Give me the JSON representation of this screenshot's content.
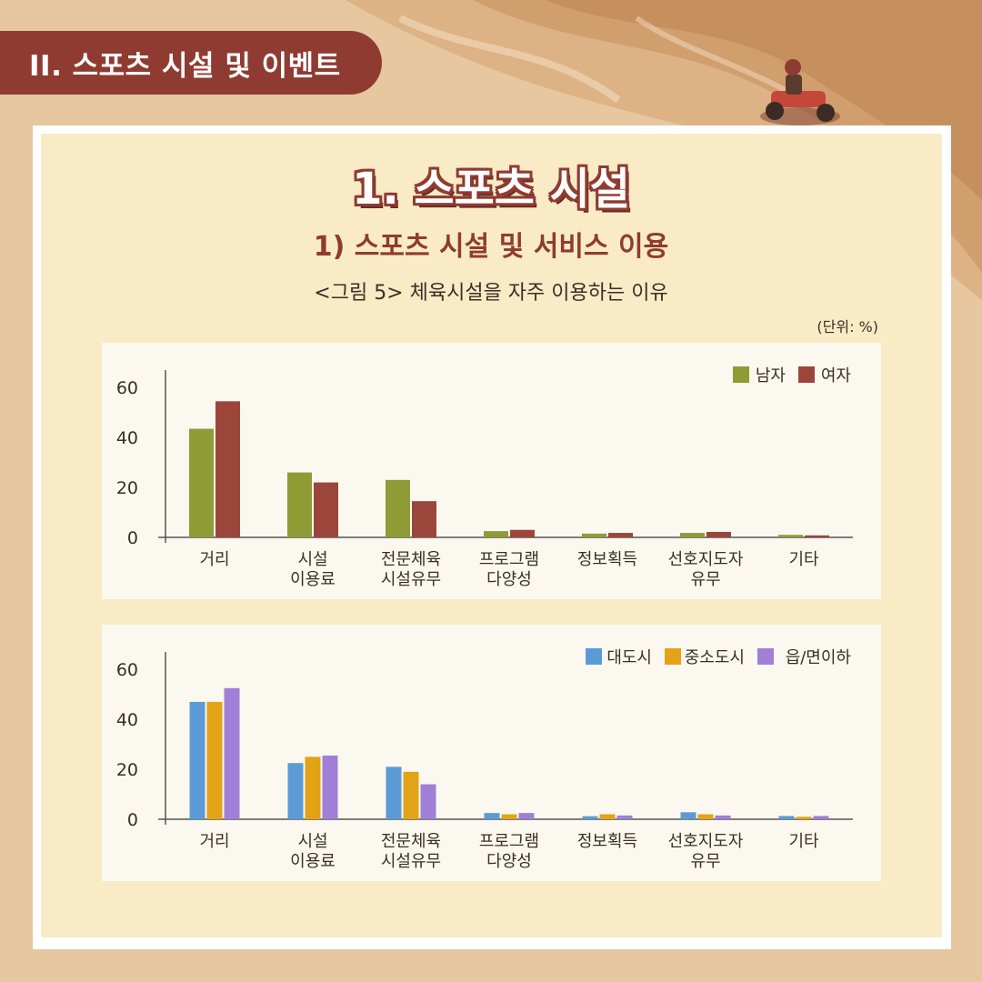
{
  "section_tab": "II. 스포츠 시설 및 이벤트",
  "main_title": "1. 스포츠 시설",
  "sub_title": "1) 스포츠 시설 및 서비스 이용",
  "figure_caption": "<그림 5> 체육시설을 자주 이용하는 이유",
  "unit_label": "(단위: %)",
  "chart_data": [
    {
      "type": "bar",
      "categories": [
        [
          "거리"
        ],
        [
          "시설",
          "이용료"
        ],
        [
          "전문체육",
          "시설유무"
        ],
        [
          "프로그램",
          "다양성"
        ],
        [
          "정보획득"
        ],
        [
          "선호지도자",
          "유무"
        ],
        [
          "기타"
        ]
      ],
      "series": [
        {
          "name": "남자",
          "color": "#8f9b35",
          "values": [
            43.5,
            26,
            23,
            2.5,
            1.5,
            1.8,
            1
          ]
        },
        {
          "name": "여자",
          "color": "#9c463b",
          "values": [
            54.5,
            22,
            14.5,
            3,
            1.8,
            2.2,
            0.8
          ]
        }
      ],
      "y_ticks": [
        "0",
        "20",
        "40",
        "60"
      ],
      "ylim": [
        0,
        67
      ],
      "legend": "top-right"
    },
    {
      "type": "bar",
      "categories": [
        [
          "거리"
        ],
        [
          "시설",
          "이용료"
        ],
        [
          "전문체육",
          "시설유무"
        ],
        [
          "프로그램",
          "다양성"
        ],
        [
          "정보획득"
        ],
        [
          "선호지도자",
          "유무"
        ],
        [
          "기타"
        ]
      ],
      "series": [
        {
          "name": "대도시",
          "color": "#5b9bd5",
          "values": [
            47,
            22.5,
            21,
            2.5,
            1.2,
            2.8,
            1.3
          ]
        },
        {
          "name": "중소도시",
          "color": "#e3a317",
          "values": [
            47,
            25,
            19,
            2,
            2,
            2,
            1
          ]
        },
        {
          "name": "읍/면이하",
          "color": "#a07fd6",
          "values": [
            52.5,
            25.5,
            14,
            2.5,
            1.5,
            1.5,
            1.3
          ]
        }
      ],
      "y_ticks": [
        "0",
        "20",
        "40",
        "60"
      ],
      "ylim": [
        0,
        67
      ],
      "legend": "top-right"
    }
  ]
}
